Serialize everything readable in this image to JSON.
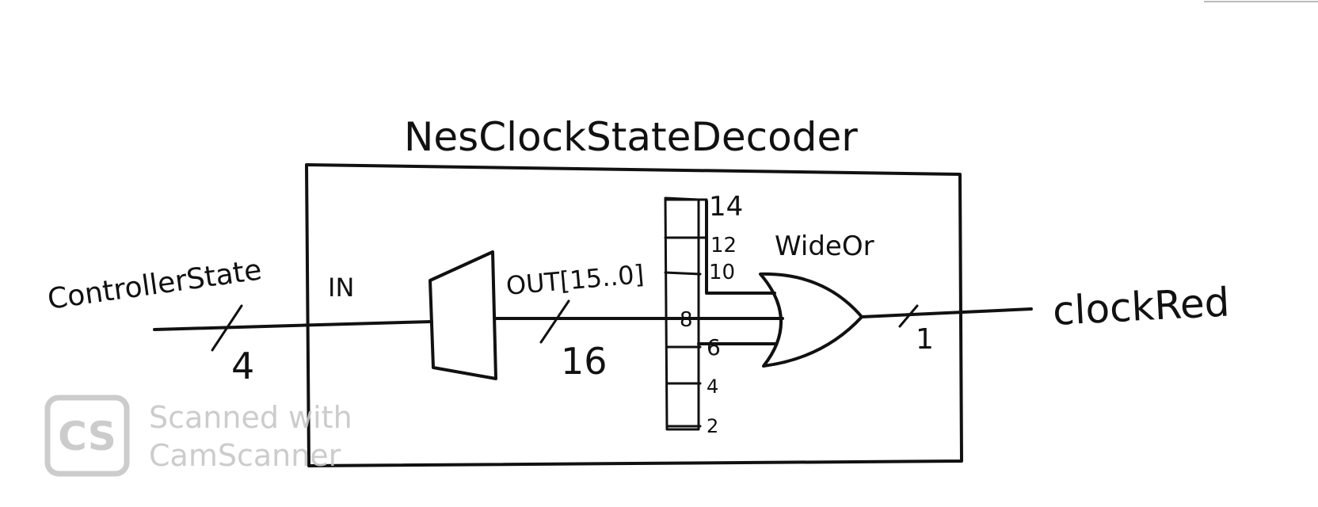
{
  "diagram": {
    "title": "NesClockStateDecoder",
    "input_signal": "ControllerState",
    "input_width": "4",
    "in_port": "IN",
    "out_port": "OUT[15..0]",
    "bus_width": "16",
    "bus_taps": [
      "14",
      "12",
      "10",
      "8",
      "6",
      "4",
      "2"
    ],
    "gate_label": "WideOr",
    "output_width": "1",
    "output_signal": "clockRed"
  },
  "watermark": {
    "logo": "CS",
    "line1": "Scanned with",
    "line2": "CamScanner",
    "color": "#c7c7c7"
  }
}
